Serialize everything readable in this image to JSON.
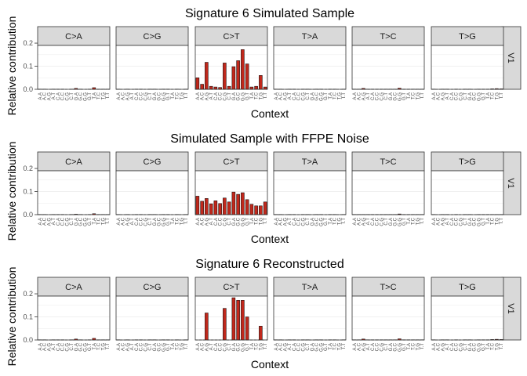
{
  "chart_data": [
    {
      "type": "bar",
      "title": "Signature 6 Simulated Sample",
      "xlabel": "Context",
      "ylabel": "Relative contribution",
      "facet_rows": [
        "V1"
      ],
      "facets": [
        "C>A",
        "C>G",
        "C>T",
        "T>A",
        "T>C",
        "T>G"
      ],
      "contexts": [
        "A.A",
        "A.C",
        "A.G",
        "A.T",
        "C.A",
        "C.C",
        "C.G",
        "C.T",
        "G.A",
        "G.C",
        "G.G",
        "G.T",
        "T.A",
        "T.C",
        "T.G",
        "T.T"
      ],
      "ylim": [
        0,
        0.19
      ],
      "yticks": [
        "0.0",
        "0.1",
        "0.2"
      ],
      "ytick_values": [
        0,
        0.1,
        0.2
      ],
      "values": {
        "C>A": [
          0.001,
          0.001,
          0.0,
          0.001,
          0.001,
          0.001,
          0.0,
          0.001,
          0.004,
          0.001,
          0.0,
          0.001,
          0.007,
          0.001,
          0.001,
          0.001
        ],
        "C>G": [
          0.001,
          0.0,
          0.001,
          0.0,
          0.001,
          0.001,
          0.0,
          0.001,
          0.001,
          0.0,
          0.001,
          0.001,
          0.0,
          0.001,
          0.0,
          0.001
        ],
        "C>T": [
          0.05,
          0.022,
          0.117,
          0.013,
          0.01,
          0.008,
          0.114,
          0.013,
          0.098,
          0.124,
          0.172,
          0.11,
          0.01,
          0.013,
          0.06,
          0.01
        ],
        "T>A": [
          0.001,
          0.001,
          0.0,
          0.001,
          0.001,
          0.0,
          0.001,
          0.001,
          0.0,
          0.001,
          0.001,
          0.0,
          0.001,
          0.001,
          0.0,
          0.001
        ],
        "T>C": [
          0.001,
          0.001,
          0.004,
          0.001,
          0.001,
          0.001,
          0.001,
          0.001,
          0.001,
          0.001,
          0.005,
          0.001,
          0.001,
          0.001,
          0.001,
          0.001
        ],
        "T>G": [
          0.001,
          0.0,
          0.001,
          0.001,
          0.0,
          0.001,
          0.0,
          0.001,
          0.001,
          0.0,
          0.001,
          0.001,
          0.001,
          0.002,
          0.003,
          0.002
        ]
      }
    },
    {
      "type": "bar",
      "title": "Simulated Sample with FFPE Noise",
      "xlabel": "Context",
      "ylabel": "Relative contribution",
      "facet_rows": [
        "V1"
      ],
      "facets": [
        "C>A",
        "C>G",
        "C>T",
        "T>A",
        "T>C",
        "T>G"
      ],
      "contexts": [
        "A.A",
        "A.C",
        "A.G",
        "A.T",
        "C.A",
        "C.C",
        "C.G",
        "C.T",
        "G.A",
        "G.C",
        "G.G",
        "G.T",
        "T.A",
        "T.C",
        "T.G",
        "T.T"
      ],
      "ylim": [
        0,
        0.19
      ],
      "yticks": [
        "0.0",
        "0.1",
        "0.2"
      ],
      "ytick_values": [
        0,
        0.1,
        0.2
      ],
      "values": {
        "C>A": [
          0.001,
          0.001,
          0.0,
          0.001,
          0.001,
          0.001,
          0.0,
          0.001,
          0.002,
          0.001,
          0.0,
          0.001,
          0.004,
          0.001,
          0.001,
          0.001
        ],
        "C>G": [
          0.001,
          0.0,
          0.001,
          0.0,
          0.001,
          0.001,
          0.0,
          0.001,
          0.001,
          0.0,
          0.001,
          0.001,
          0.0,
          0.001,
          0.0,
          0.001
        ],
        "C>T": [
          0.08,
          0.058,
          0.07,
          0.047,
          0.06,
          0.048,
          0.072,
          0.055,
          0.098,
          0.088,
          0.095,
          0.065,
          0.045,
          0.038,
          0.038,
          0.055
        ],
        "T>A": [
          0.001,
          0.001,
          0.0,
          0.001,
          0.001,
          0.0,
          0.001,
          0.001,
          0.0,
          0.001,
          0.001,
          0.0,
          0.001,
          0.001,
          0.0,
          0.001
        ],
        "T>C": [
          0.001,
          0.001,
          0.001,
          0.001,
          0.001,
          0.001,
          0.001,
          0.001,
          0.001,
          0.001,
          0.003,
          0.001,
          0.001,
          0.001,
          0.001,
          0.001
        ],
        "T>G": [
          0.001,
          0.0,
          0.001,
          0.001,
          0.0,
          0.001,
          0.0,
          0.001,
          0.001,
          0.0,
          0.001,
          0.001,
          0.001,
          0.001,
          0.001,
          0.001
        ]
      }
    },
    {
      "type": "bar",
      "title": "Signature 6 Reconstructed",
      "xlabel": "Context",
      "ylabel": "Relative contribution",
      "facet_rows": [
        "V1"
      ],
      "facets": [
        "C>A",
        "C>G",
        "C>T",
        "T>A",
        "T>C",
        "T>G"
      ],
      "contexts": [
        "A.A",
        "A.C",
        "A.G",
        "A.T",
        "C.A",
        "C.C",
        "C.G",
        "C.T",
        "G.A",
        "G.C",
        "G.G",
        "G.T",
        "T.A",
        "T.C",
        "T.G",
        "T.T"
      ],
      "ylim": [
        0,
        0.19
      ],
      "yticks": [
        "0.0",
        "0.1",
        "0.2"
      ],
      "ytick_values": [
        0,
        0.1,
        0.2
      ],
      "values": {
        "C>A": [
          0.001,
          0.001,
          0.0,
          0.001,
          0.001,
          0.001,
          0.0,
          0.001,
          0.004,
          0.001,
          0.0,
          0.001,
          0.007,
          0.001,
          0.001,
          0.001
        ],
        "C>G": [
          0.001,
          0.0,
          0.001,
          0.0,
          0.001,
          0.001,
          0.0,
          0.001,
          0.001,
          0.0,
          0.001,
          0.001,
          0.0,
          0.001,
          0.0,
          0.001
        ],
        "C>T": [
          0.0,
          0.0,
          0.117,
          0.0,
          0.0,
          0.0,
          0.137,
          0.0,
          0.183,
          0.172,
          0.172,
          0.1,
          0.0,
          0.0,
          0.06,
          0.0
        ],
        "T>A": [
          0.001,
          0.001,
          0.0,
          0.001,
          0.001,
          0.0,
          0.001,
          0.001,
          0.0,
          0.001,
          0.001,
          0.0,
          0.001,
          0.001,
          0.0,
          0.001
        ],
        "T>C": [
          0.001,
          0.001,
          0.004,
          0.001,
          0.001,
          0.001,
          0.001,
          0.001,
          0.001,
          0.001,
          0.005,
          0.001,
          0.001,
          0.001,
          0.001,
          0.001
        ],
        "T>G": [
          0.001,
          0.0,
          0.001,
          0.001,
          0.0,
          0.001,
          0.0,
          0.001,
          0.001,
          0.0,
          0.001,
          0.001,
          0.001,
          0.002,
          0.003,
          0.002
        ]
      }
    }
  ],
  "colors": {
    "bar_fill": "#c0281c",
    "bar_stroke": "#000000",
    "strip_fill": "#d9d9d9",
    "panel_border": "#333333",
    "grid": "#ebebeb",
    "text": "#1a1a1a",
    "tick_text": "#4d4d4d"
  }
}
